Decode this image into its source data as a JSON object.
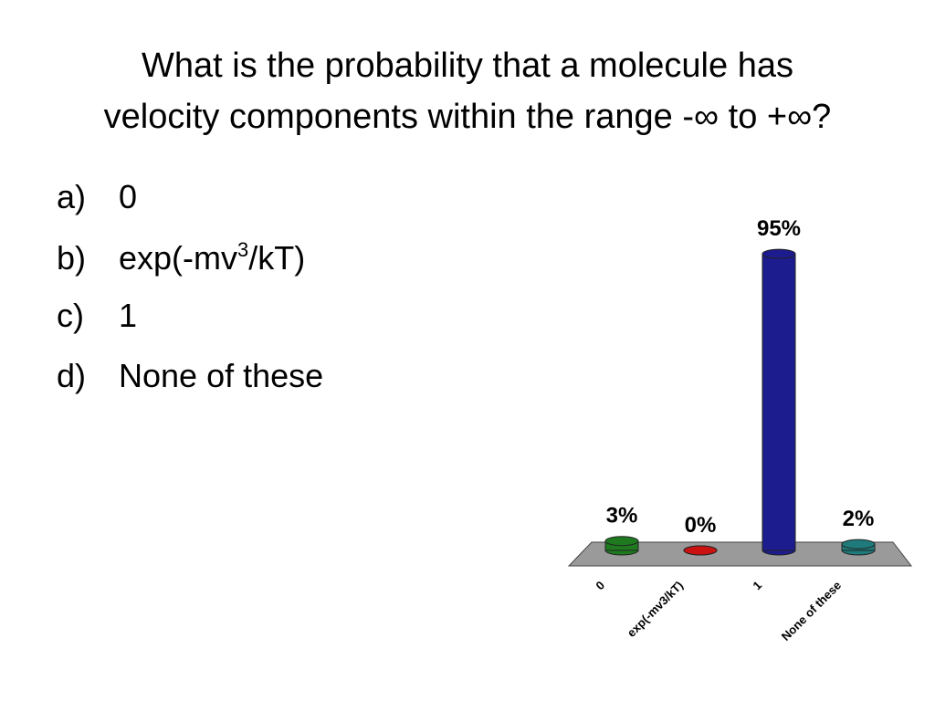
{
  "title_lines": [
    "What is the probability that a molecule has",
    "velocity components within the range -∞ to +∞?"
  ],
  "options": [
    {
      "marker": "a)",
      "text": "0"
    },
    {
      "marker": "b)",
      "text": "exp(-mv",
      "sup": "3",
      "text_after": "/kT)"
    },
    {
      "marker": "c)",
      "text": "1"
    },
    {
      "marker": "d)",
      "text": "None of these"
    }
  ],
  "chart_data": {
    "type": "bar",
    "categories": [
      "0",
      "exp(-mv3/kT)",
      "1",
      "None of these"
    ],
    "values": [
      3,
      0,
      95,
      2
    ],
    "value_labels": [
      "3%",
      "0%",
      "95%",
      "2%"
    ],
    "colors": [
      "#1f7a1f",
      "#cc1111",
      "#1c1c8e",
      "#1f7b7b"
    ]
  }
}
